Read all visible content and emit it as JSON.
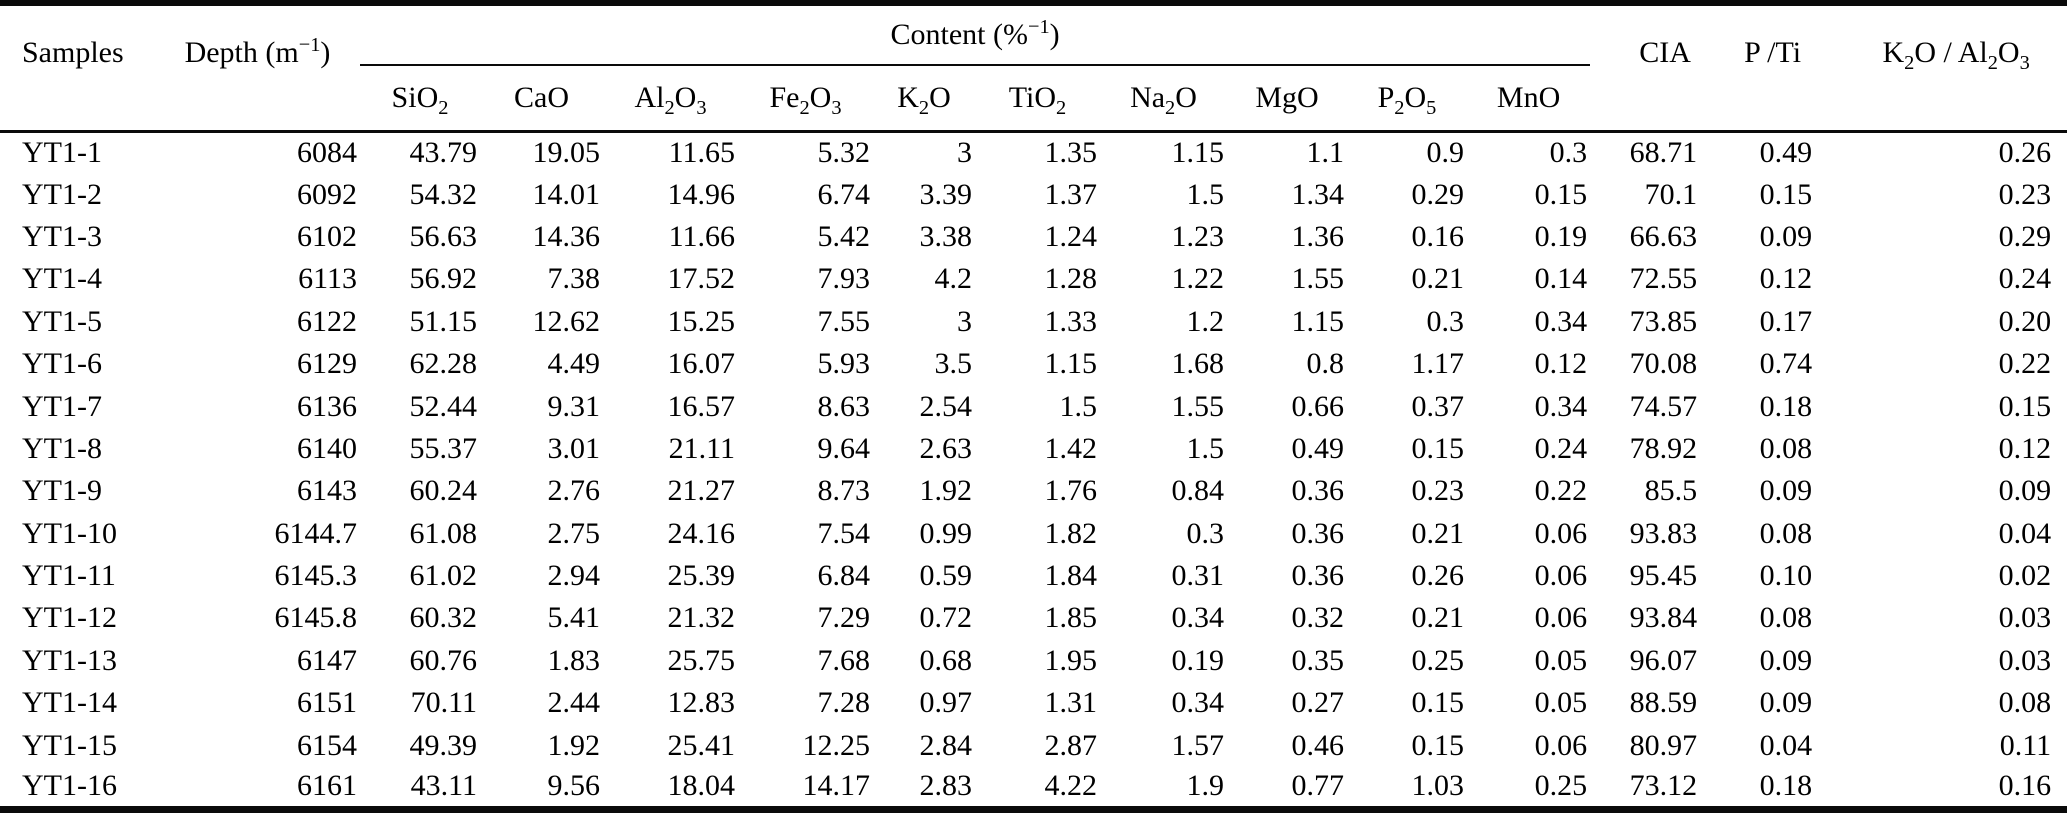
{
  "chart_data": {
    "type": "table",
    "group_header": {
      "label_html": "Content (%<sup>−1</sup>)",
      "spans_columns": [
        "SiO2",
        "CaO",
        "Al2O3",
        "Fe2O3",
        "K2O",
        "TiO2",
        "Na2O",
        "MgO",
        "P2O5",
        "MnO"
      ]
    },
    "columns_html": [
      "Samples",
      "Depth (m<sup>−1</sup>)",
      "SiO<sub>2</sub>",
      "CaO",
      "Al<sub>2</sub>O<sub>3</sub>",
      "Fe<sub>2</sub>O<sub>3</sub>",
      "K<sub>2</sub>O",
      "TiO<sub>2</sub>",
      "Na<sub>2</sub>O",
      "MgO",
      "P<sub>2</sub>O<sub>5</sub>",
      "MnO",
      "CIA",
      "P /Ti",
      "K<sub>2</sub>O / Al<sub>2</sub>O<sub>3</sub>"
    ],
    "rows": [
      [
        "YT1-1",
        "6084",
        "43.79",
        "19.05",
        "11.65",
        "5.32",
        "3",
        "1.35",
        "1.15",
        "1.1",
        "0.9",
        "0.3",
        "68.71",
        "0.49",
        "0.26"
      ],
      [
        "YT1-2",
        "6092",
        "54.32",
        "14.01",
        "14.96",
        "6.74",
        "3.39",
        "1.37",
        "1.5",
        "1.34",
        "0.29",
        "0.15",
        "70.1",
        "0.15",
        "0.23"
      ],
      [
        "YT1-3",
        "6102",
        "56.63",
        "14.36",
        "11.66",
        "5.42",
        "3.38",
        "1.24",
        "1.23",
        "1.36",
        "0.16",
        "0.19",
        "66.63",
        "0.09",
        "0.29"
      ],
      [
        "YT1-4",
        "6113",
        "56.92",
        "7.38",
        "17.52",
        "7.93",
        "4.2",
        "1.28",
        "1.22",
        "1.55",
        "0.21",
        "0.14",
        "72.55",
        "0.12",
        "0.24"
      ],
      [
        "YT1-5",
        "6122",
        "51.15",
        "12.62",
        "15.25",
        "7.55",
        "3",
        "1.33",
        "1.2",
        "1.15",
        "0.3",
        "0.34",
        "73.85",
        "0.17",
        "0.20"
      ],
      [
        "YT1-6",
        "6129",
        "62.28",
        "4.49",
        "16.07",
        "5.93",
        "3.5",
        "1.15",
        "1.68",
        "0.8",
        "1.17",
        "0.12",
        "70.08",
        "0.74",
        "0.22"
      ],
      [
        "YT1-7",
        "6136",
        "52.44",
        "9.31",
        "16.57",
        "8.63",
        "2.54",
        "1.5",
        "1.55",
        "0.66",
        "0.37",
        "0.34",
        "74.57",
        "0.18",
        "0.15"
      ],
      [
        "YT1-8",
        "6140",
        "55.37",
        "3.01",
        "21.11",
        "9.64",
        "2.63",
        "1.42",
        "1.5",
        "0.49",
        "0.15",
        "0.24",
        "78.92",
        "0.08",
        "0.12"
      ],
      [
        "YT1-9",
        "6143",
        "60.24",
        "2.76",
        "21.27",
        "8.73",
        "1.92",
        "1.76",
        "0.84",
        "0.36",
        "0.23",
        "0.22",
        "85.5",
        "0.09",
        "0.09"
      ],
      [
        "YT1-10",
        "6144.7",
        "61.08",
        "2.75",
        "24.16",
        "7.54",
        "0.99",
        "1.82",
        "0.3",
        "0.36",
        "0.21",
        "0.06",
        "93.83",
        "0.08",
        "0.04"
      ],
      [
        "YT1-11",
        "6145.3",
        "61.02",
        "2.94",
        "25.39",
        "6.84",
        "0.59",
        "1.84",
        "0.31",
        "0.36",
        "0.26",
        "0.06",
        "95.45",
        "0.10",
        "0.02"
      ],
      [
        "YT1-12",
        "6145.8",
        "60.32",
        "5.41",
        "21.32",
        "7.29",
        "0.72",
        "1.85",
        "0.34",
        "0.32",
        "0.21",
        "0.06",
        "93.84",
        "0.08",
        "0.03"
      ],
      [
        "YT1-13",
        "6147",
        "60.76",
        "1.83",
        "25.75",
        "7.68",
        "0.68",
        "1.95",
        "0.19",
        "0.35",
        "0.25",
        "0.05",
        "96.07",
        "0.09",
        "0.03"
      ],
      [
        "YT1-14",
        "6151",
        "70.11",
        "2.44",
        "12.83",
        "7.28",
        "0.97",
        "1.31",
        "0.34",
        "0.27",
        "0.15",
        "0.05",
        "88.59",
        "0.09",
        "0.08"
      ],
      [
        "YT1-15",
        "6154",
        "49.39",
        "1.92",
        "25.41",
        "12.25",
        "2.84",
        "2.87",
        "1.57",
        "0.46",
        "0.15",
        "0.06",
        "80.97",
        "0.04",
        "0.11"
      ],
      [
        "YT1-16",
        "6161",
        "43.11",
        "9.56",
        "18.04",
        "14.17",
        "2.83",
        "4.22",
        "1.9",
        "0.77",
        "1.03",
        "0.25",
        "73.12",
        "0.18",
        "0.16"
      ]
    ]
  }
}
